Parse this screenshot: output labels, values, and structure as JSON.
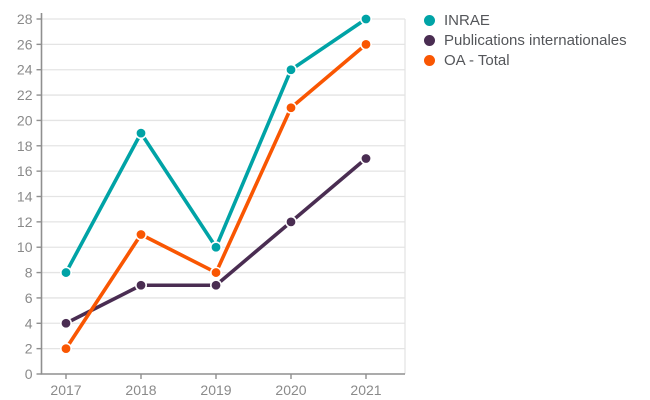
{
  "chart_data": {
    "type": "line",
    "title": "",
    "xlabel": "",
    "ylabel": "",
    "categories": [
      "2017",
      "2018",
      "2019",
      "2020",
      "2021"
    ],
    "series": [
      {
        "name": "INRAE",
        "color": "#00a3a6",
        "values": [
          8,
          19,
          10,
          24,
          28
        ]
      },
      {
        "name": "Publications internationales",
        "color": "#4a2d52",
        "values": [
          4,
          7,
          7,
          12,
          17
        ]
      },
      {
        "name": "OA - Total",
        "color": "#f95602",
        "values": [
          2,
          11,
          8,
          21,
          26
        ]
      }
    ],
    "ylim": [
      0,
      28
    ],
    "ytick_step": 2,
    "grid": true,
    "legend_position": "top-right"
  },
  "styles": {
    "background": "#ffffff",
    "grid_color": "#e4e4e4",
    "axis_color": "#8f8f8f",
    "tick_label_color": "#8a8a8a",
    "legend_text_color": "#54565a"
  }
}
